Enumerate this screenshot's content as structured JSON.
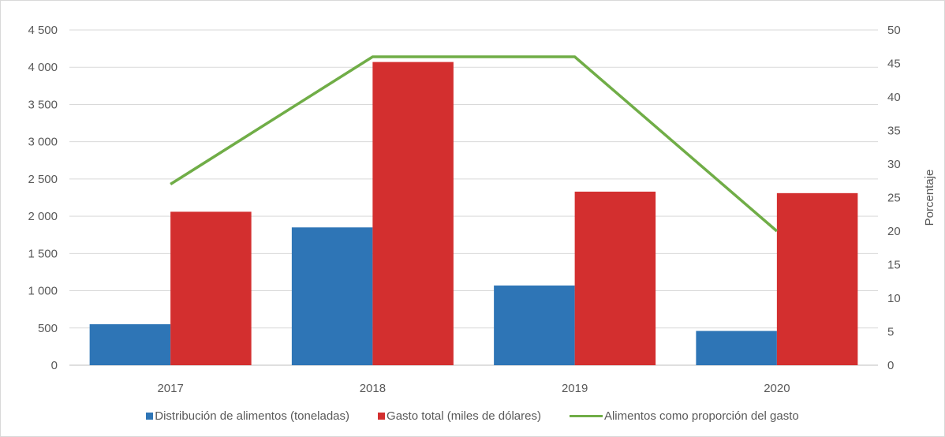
{
  "chart_data": {
    "type": "bar",
    "categories": [
      "2017",
      "2018",
      "2019",
      "2020"
    ],
    "series": [
      {
        "name": "Distribución de alimentos (toneladas)",
        "type": "bar",
        "axis": "left",
        "color": "#2e75b6",
        "values": [
          550,
          1850,
          1070,
          460
        ]
      },
      {
        "name": "Gasto total (miles de dólares)",
        "type": "bar",
        "axis": "left",
        "color": "#d32f2f",
        "values": [
          2060,
          4070,
          2330,
          2310
        ]
      },
      {
        "name": "Alimentos como proporción del gasto",
        "type": "line",
        "axis": "right",
        "color": "#70ad47",
        "values": [
          27,
          46,
          46,
          20
        ]
      }
    ],
    "y_left": {
      "min": 0,
      "max": 4500,
      "ticks": [
        "0",
        "500",
        "1 000",
        "1 500",
        "2 000",
        "2 500",
        "3 000",
        "3 500",
        "4 000",
        "4 500"
      ]
    },
    "y_right": {
      "min": 0,
      "max": 50,
      "label": "Porcentaje",
      "ticks": [
        "0",
        "5",
        "10",
        "15",
        "20",
        "25",
        "30",
        "35",
        "40",
        "45",
        "50"
      ]
    },
    "grid": true,
    "legend_position": "bottom"
  }
}
